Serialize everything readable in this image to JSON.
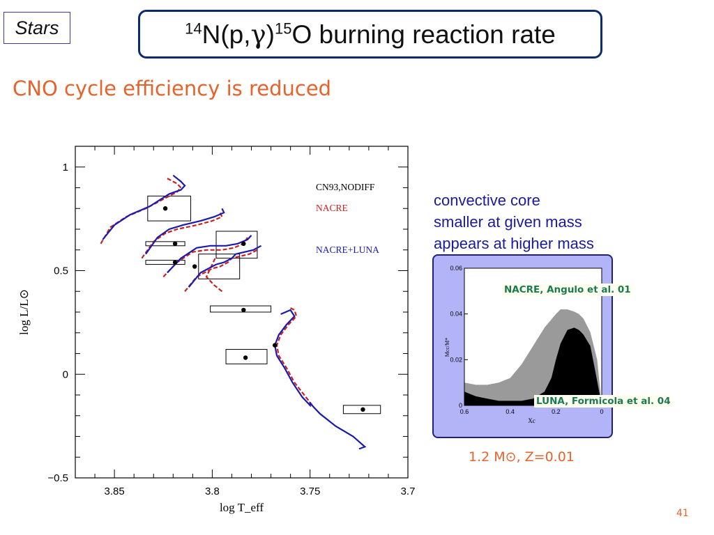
{
  "header": {
    "tag": "Stars",
    "title": {
      "sup1": "14",
      "pre": "N(p,",
      "gamma": "γ",
      ")": ")",
      "sup2": "15",
      "post": "O burning reaction rate"
    }
  },
  "subtitle": "CNO cycle efficiency is reduced",
  "note_lines": [
    "convective core",
    "smaller at given mass",
    "appears at higher mass"
  ],
  "labels": {
    "nacre_angulo": "NACRE, Angulo et al. 01",
    "luna_formicola": "LUNA, Formicola et al. 04"
  },
  "params": "1.2 M⊙, Z=0.01",
  "page_number": "41",
  "colors": {
    "accent": "#e8622a",
    "title_border": "#0d2a6b",
    "note": "#1a1aa0",
    "nacre": "#cc2020",
    "luna": "#1a1ab0",
    "cn93": "#000000",
    "inset_bg": "#b3b3f7",
    "inset_label": "#1a7a55"
  },
  "chart_data": [
    {
      "type": "scatter",
      "xlabel": "log  T_eff",
      "ylabel": "log  L/L⊙",
      "xlim": [
        3.87,
        3.7
      ],
      "ylim": [
        -0.5,
        1.1
      ],
      "x_ticks": [
        "3.85",
        "3.8",
        "3.75",
        "3.7"
      ],
      "y_ticks": [
        "1",
        "0.5",
        "0",
        "−0.5"
      ],
      "legend": [
        "CN93,NODIFF",
        "NACRE",
        "NACRE+LUNA"
      ],
      "legend_position": "top-right",
      "cluster_stars": [
        {
          "x": 3.824,
          "y": 0.8
        },
        {
          "x": 3.819,
          "y": 0.63
        },
        {
          "x": 3.819,
          "y": 0.54
        },
        {
          "x": 3.809,
          "y": 0.52
        },
        {
          "x": 3.784,
          "y": 0.63
        },
        {
          "x": 3.784,
          "y": 0.31
        },
        {
          "x": 3.783,
          "y": 0.08
        },
        {
          "x": 3.768,
          "y": 0.14
        },
        {
          "x": 3.723,
          "y": -0.17
        }
      ],
      "error_boxes": [
        {
          "x0": 3.833,
          "x1": 3.811,
          "y0": 0.74,
          "y1": 0.86
        },
        {
          "x0": 3.834,
          "x1": 3.814,
          "y0": 0.62,
          "y1": 0.64
        },
        {
          "x0": 3.834,
          "x1": 3.814,
          "y0": 0.53,
          "y1": 0.55
        },
        {
          "x0": 3.807,
          "x1": 3.786,
          "y0": 0.46,
          "y1": 0.58
        },
        {
          "x0": 3.798,
          "x1": 3.777,
          "y0": 0.56,
          "y1": 0.69
        },
        {
          "x0": 3.801,
          "x1": 3.77,
          "y0": 0.3,
          "y1": 0.33
        },
        {
          "x0": 3.793,
          "x1": 3.772,
          "y0": 0.05,
          "y1": 0.12
        },
        {
          "x0": 3.733,
          "x1": 3.714,
          "y0": -0.19,
          "y1": -0.15
        }
      ],
      "series": [
        {
          "name": "NACRE",
          "values": [
            [
              3.857,
              0.63
            ],
            [
              3.852,
              0.71
            ],
            [
              3.844,
              0.76
            ],
            [
              3.834,
              0.8
            ],
            [
              3.824,
              0.85
            ],
            [
              3.818,
              0.88
            ],
            [
              3.816,
              0.9
            ],
            [
              3.818,
              0.92
            ],
            [
              3.824,
              0.95
            ]
          ],
          "extra": [
            [
              3.836,
              0.56
            ],
            [
              3.83,
              0.64
            ],
            [
              3.824,
              0.68
            ],
            [
              3.818,
              0.7
            ],
            [
              3.808,
              0.72
            ],
            [
              3.8,
              0.74
            ],
            [
              3.795,
              0.76
            ],
            [
              3.796,
              0.78
            ],
            [
              3.825,
              0.47
            ],
            [
              3.818,
              0.54
            ],
            [
              3.81,
              0.59
            ],
            [
              3.803,
              0.6
            ],
            [
              3.795,
              0.6
            ],
            [
              3.789,
              0.61
            ],
            [
              3.784,
              0.63
            ],
            [
              3.782,
              0.66
            ],
            [
              3.814,
              0.4
            ],
            [
              3.808,
              0.47
            ],
            [
              3.8,
              0.51
            ],
            [
              3.796,
              0.52
            ],
            [
              3.792,
              0.54
            ],
            [
              3.79,
              0.56
            ],
            [
              3.781,
              0.58
            ],
            [
              3.777,
              0.6
            ],
            [
              3.795,
              0.4
            ],
            [
              3.799,
              0.43
            ],
            [
              3.803,
              0.47
            ],
            [
              3.8,
              0.53
            ],
            [
              3.798,
              0.57
            ],
            [
              3.76,
              0.32
            ],
            [
              3.758,
              0.31
            ],
            [
              3.757,
              0.28
            ],
            [
              3.761,
              0.24
            ],
            [
              3.765,
              0.19
            ],
            [
              3.767,
              0.14
            ],
            [
              3.766,
              0.09
            ],
            [
              3.762,
              0.03
            ],
            [
              3.758,
              -0.04
            ],
            [
              3.753,
              -0.1
            ],
            [
              3.748,
              -0.16
            ]
          ]
        },
        {
          "name": "NACRE+LUNA",
          "values": [
            [
              3.856,
              0.65
            ],
            [
              3.85,
              0.72
            ],
            [
              3.842,
              0.77
            ],
            [
              3.832,
              0.81
            ],
            [
              3.822,
              0.87
            ],
            [
              3.816,
              0.89
            ],
            [
              3.814,
              0.91
            ],
            [
              3.816,
              0.93
            ],
            [
              3.82,
              0.96
            ]
          ],
          "extra": [
            [
              3.834,
              0.58
            ],
            [
              3.828,
              0.66
            ],
            [
              3.822,
              0.7
            ],
            [
              3.815,
              0.72
            ],
            [
              3.806,
              0.74
            ],
            [
              3.799,
              0.76
            ],
            [
              3.794,
              0.78
            ],
            [
              3.795,
              0.8
            ],
            [
              3.823,
              0.49
            ],
            [
              3.816,
              0.56
            ],
            [
              3.808,
              0.61
            ],
            [
              3.801,
              0.62
            ],
            [
              3.793,
              0.62
            ],
            [
              3.787,
              0.63
            ],
            [
              3.782,
              0.65
            ],
            [
              3.78,
              0.67
            ],
            [
              3.812,
              0.42
            ],
            [
              3.806,
              0.49
            ],
            [
              3.798,
              0.53
            ],
            [
              3.794,
              0.54
            ],
            [
              3.79,
              0.56
            ],
            [
              3.788,
              0.58
            ],
            [
              3.779,
              0.6
            ],
            [
              3.775,
              0.62
            ],
            [
              3.765,
              0.29
            ],
            [
              3.76,
              0.31
            ],
            [
              3.758,
              0.28
            ],
            [
              3.762,
              0.24
            ],
            [
              3.766,
              0.19
            ],
            [
              3.768,
              0.14
            ],
            [
              3.767,
              0.09
            ],
            [
              3.763,
              0.03
            ],
            [
              3.759,
              -0.04
            ],
            [
              3.754,
              -0.11
            ],
            [
              3.75,
              -0.15
            ],
            [
              3.75,
              -0.14
            ],
            [
              3.745,
              -0.19
            ],
            [
              3.737,
              -0.25
            ],
            [
              3.728,
              -0.3
            ],
            [
              3.722,
              -0.35
            ],
            [
              3.725,
              -0.36
            ]
          ]
        }
      ]
    },
    {
      "type": "area",
      "xlabel": "Xc",
      "ylabel": "Mcc/M*",
      "xlim": [
        0.6,
        0
      ],
      "ylim": [
        0,
        0.06
      ],
      "x_ticks": [
        "0.6",
        "0.4",
        "0.2",
        "0"
      ],
      "y_ticks": [
        "0.06",
        "0.04",
        "0.02",
        "0"
      ],
      "series": [
        {
          "name": "NACRE, Angulo et al. 01",
          "x": [
            0.6,
            0.55,
            0.5,
            0.45,
            0.4,
            0.35,
            0.3,
            0.25,
            0.2,
            0.18,
            0.15,
            0.12,
            0.1,
            0.08,
            0.05,
            0.02,
            0.0
          ],
          "values": [
            0.01,
            0.009,
            0.009,
            0.01,
            0.012,
            0.018,
            0.026,
            0.034,
            0.04,
            0.042,
            0.042,
            0.041,
            0.04,
            0.038,
            0.032,
            0.02,
            0.0
          ]
        },
        {
          "name": "LUNA, Formicola et al. 04",
          "x": [
            0.6,
            0.55,
            0.5,
            0.45,
            0.4,
            0.35,
            0.3,
            0.25,
            0.22,
            0.2,
            0.18,
            0.15,
            0.12,
            0.1,
            0.08,
            0.05,
            0.03,
            0.0
          ],
          "values": [
            0.006,
            0.004,
            0.003,
            0.002,
            0.002,
            0.002,
            0.003,
            0.006,
            0.012,
            0.02,
            0.027,
            0.033,
            0.034,
            0.033,
            0.031,
            0.026,
            0.016,
            0.0
          ]
        }
      ]
    }
  ]
}
